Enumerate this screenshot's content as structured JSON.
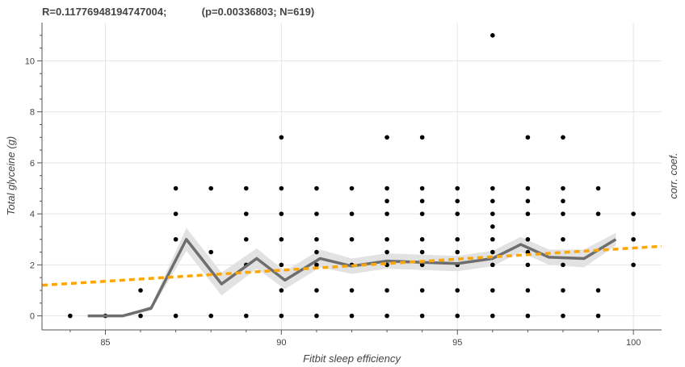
{
  "chart_data": {
    "type": "scatter",
    "title": "R=0.11776948194747004;            (p=0.00336803; N=619)",
    "xlabel": "Fitbit sleep efficiency",
    "ylabel": "Total glyceine (g)",
    "right_label": "corr. coef.",
    "xlim": [
      83.2,
      100.8
    ],
    "ylim": [
      -0.55,
      11.5
    ],
    "xticks": [
      85,
      90,
      95,
      100
    ],
    "yticks": [
      0,
      2,
      4,
      6,
      8,
      10
    ],
    "grid": true,
    "colors": {
      "points": "#000000",
      "mean_line": "#6e6e6e",
      "band": "#e2e2e2",
      "trend": "#ffa500"
    },
    "points": [
      [
        84,
        0
      ],
      [
        85,
        0
      ],
      [
        86,
        0
      ],
      [
        86,
        1
      ],
      [
        87,
        0
      ],
      [
        87,
        3
      ],
      [
        87,
        4
      ],
      [
        87,
        5
      ],
      [
        88,
        0
      ],
      [
        88,
        2.5
      ],
      [
        88,
        5
      ],
      [
        89,
        0
      ],
      [
        89,
        2
      ],
      [
        89,
        3
      ],
      [
        89,
        4
      ],
      [
        89,
        5
      ],
      [
        90,
        0
      ],
      [
        90,
        1
      ],
      [
        90,
        2
      ],
      [
        90,
        3
      ],
      [
        90,
        4
      ],
      [
        90,
        5
      ],
      [
        90,
        7
      ],
      [
        91,
        0
      ],
      [
        91,
        1
      ],
      [
        91,
        2
      ],
      [
        91,
        2.5
      ],
      [
        91,
        3
      ],
      [
        91,
        4
      ],
      [
        91,
        5
      ],
      [
        92,
        0
      ],
      [
        92,
        1
      ],
      [
        92,
        2
      ],
      [
        92,
        3
      ],
      [
        92,
        4
      ],
      [
        92,
        5
      ],
      [
        93,
        0
      ],
      [
        93,
        1
      ],
      [
        93,
        2
      ],
      [
        93,
        2.5
      ],
      [
        93,
        3
      ],
      [
        93,
        4
      ],
      [
        93,
        4.5
      ],
      [
        93,
        5
      ],
      [
        93,
        7
      ],
      [
        94,
        0
      ],
      [
        94,
        1
      ],
      [
        94,
        2
      ],
      [
        94,
        2.5
      ],
      [
        94,
        3
      ],
      [
        94,
        4
      ],
      [
        94,
        4.5
      ],
      [
        94,
        5
      ],
      [
        94,
        7
      ],
      [
        95,
        0
      ],
      [
        95,
        1
      ],
      [
        95,
        2
      ],
      [
        95,
        2.5
      ],
      [
        95,
        3
      ],
      [
        95,
        4
      ],
      [
        95,
        4.5
      ],
      [
        95,
        5
      ],
      [
        96,
        0
      ],
      [
        96,
        1
      ],
      [
        96,
        2
      ],
      [
        96,
        2.5
      ],
      [
        96,
        3
      ],
      [
        96,
        3.5
      ],
      [
        96,
        4
      ],
      [
        96,
        4.5
      ],
      [
        96,
        5
      ],
      [
        96,
        11
      ],
      [
        97,
        0
      ],
      [
        97,
        1
      ],
      [
        97,
        2
      ],
      [
        97,
        2.5
      ],
      [
        97,
        3
      ],
      [
        97,
        4
      ],
      [
        97,
        4.5
      ],
      [
        97,
        5
      ],
      [
        97,
        7
      ],
      [
        98,
        0
      ],
      [
        98,
        1
      ],
      [
        98,
        2
      ],
      [
        98,
        3
      ],
      [
        98,
        4
      ],
      [
        98,
        4.5
      ],
      [
        98,
        5
      ],
      [
        98,
        7
      ],
      [
        99,
        0
      ],
      [
        99,
        1
      ],
      [
        99,
        4
      ],
      [
        99,
        5
      ],
      [
        100,
        2
      ],
      [
        100,
        3
      ],
      [
        100,
        4
      ]
    ],
    "mean_line": {
      "x": [
        84.5,
        85.5,
        86.3,
        87.3,
        88.3,
        89.3,
        90.1,
        91.1,
        92.0,
        93.0,
        94.0,
        95.0,
        96.0,
        96.8,
        97.6,
        98.6,
        99.5
      ],
      "y": [
        0,
        0,
        0.3,
        3.0,
        1.25,
        2.25,
        1.4,
        2.25,
        1.95,
        2.15,
        2.1,
        2.05,
        2.25,
        2.8,
        2.3,
        2.25,
        3.0
      ],
      "band_half_width": [
        0,
        0,
        0.1,
        0.45,
        0.45,
        0.4,
        0.35,
        0.35,
        0.3,
        0.3,
        0.3,
        0.3,
        0.3,
        0.3,
        0.3,
        0.35,
        0.25
      ]
    },
    "trend_line": {
      "x": [
        83.2,
        100.8
      ],
      "y": [
        1.2,
        2.73
      ]
    }
  }
}
